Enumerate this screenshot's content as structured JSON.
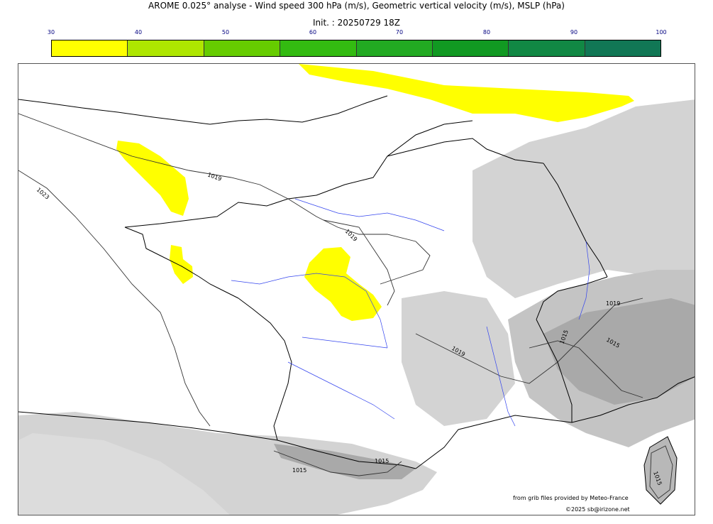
{
  "title_line1": "AROME 0.025° analyse - Wind speed 300 hPa (m/s), Geometric vertical velocity (m/s), MSLP (hPa)",
  "title_line2": "Init. : 20250729 18Z",
  "colorbar": {
    "ticks": [
      "30",
      "40",
      "50",
      "60",
      "70",
      "80",
      "90",
      "100"
    ],
    "colors": [
      "#ffff00",
      "#aee600",
      "#66cc00",
      "#33bb11",
      "#22aa22",
      "#119922",
      "#118844",
      "#117755"
    ]
  },
  "isobar_labels": [
    "1019",
    "1023",
    "1019",
    "1019",
    "1019",
    "1015",
    "1015",
    "1015",
    "1015",
    "1015"
  ],
  "credit_line1": "from grib files provided by Meteo-France",
  "credit_line2": "©2025 sb@irizone.net",
  "colors": {
    "wind_yellow": "#ffff00",
    "terrain_gray": "#d3d3d3",
    "terrain_dark": "#b0b0b0",
    "rivers": "#3344ee",
    "coast": "#000000"
  }
}
